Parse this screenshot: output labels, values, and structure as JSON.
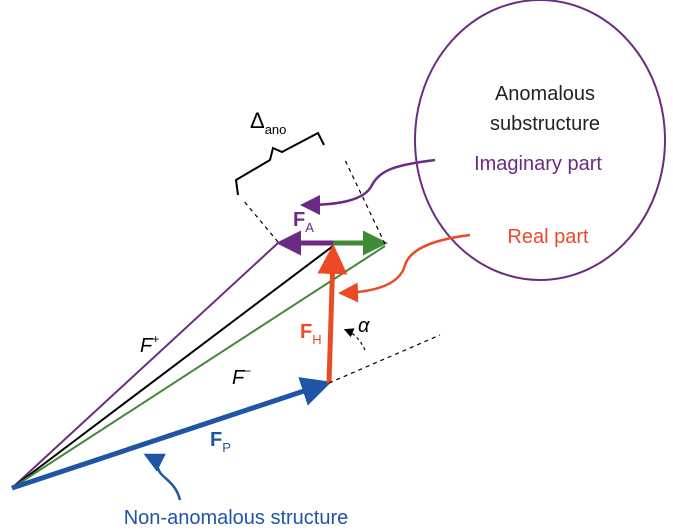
{
  "circle": {
    "line1": "Anomalous",
    "line2": "substructure",
    "imaginary": "Imaginary part",
    "real": "Real part"
  },
  "delta": {
    "symbol": "Δ",
    "sub": "ano"
  },
  "vectors": {
    "fa": {
      "symbol": "F",
      "sub": "A"
    },
    "fplus": {
      "symbol": "F",
      "sup": "+"
    },
    "fminus": {
      "symbol": "F",
      "sup": "−"
    },
    "fh": {
      "symbol": "F",
      "sub": "H"
    },
    "fp": {
      "symbol": "F",
      "sub": "P"
    },
    "alpha": "α"
  },
  "caption": "Non-anomalous structure"
}
